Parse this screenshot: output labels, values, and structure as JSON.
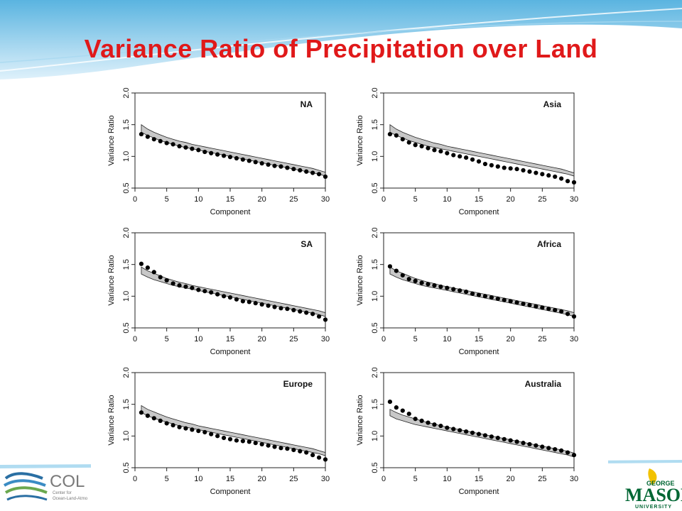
{
  "slide": {
    "title": "Variance Ratio of Precipitation over Land"
  },
  "logos": {
    "left_text": "COL",
    "left_subtext_1": "Center for",
    "left_subtext_2": "Ocean-Land-Atmo",
    "right_text_top": "GEORGE",
    "right_text_main": "MASON",
    "right_text_bottom": "UNIVERSITY"
  },
  "colors": {
    "title": "#e0191a",
    "band_fill": "#c8c8c8",
    "points": "#000000"
  },
  "chart_data": [
    {
      "type": "scatter",
      "region": "NA",
      "xlabel": "Component",
      "ylabel": "Variance Ratio",
      "xlim": [
        0,
        30
      ],
      "ylim": [
        0.5,
        2.0
      ],
      "xticks": [
        "0",
        "5",
        "10",
        "15",
        "20",
        "25",
        "30"
      ],
      "yticks": [
        "0.5",
        "1.0",
        "1.5",
        "2.0"
      ],
      "x": [
        1,
        2,
        3,
        4,
        5,
        6,
        7,
        8,
        9,
        10,
        11,
        12,
        13,
        14,
        15,
        16,
        17,
        18,
        19,
        20,
        21,
        22,
        23,
        24,
        25,
        26,
        27,
        28,
        29,
        30
      ],
      "points": [
        1.35,
        1.31,
        1.27,
        1.24,
        1.21,
        1.19,
        1.16,
        1.14,
        1.12,
        1.1,
        1.07,
        1.05,
        1.03,
        1.01,
        0.99,
        0.97,
        0.95,
        0.93,
        0.91,
        0.89,
        0.87,
        0.85,
        0.84,
        0.82,
        0.8,
        0.78,
        0.76,
        0.74,
        0.72,
        0.68
      ],
      "band_upper": [
        1.5,
        1.43,
        1.38,
        1.34,
        1.3,
        1.27,
        1.24,
        1.22,
        1.19,
        1.17,
        1.15,
        1.13,
        1.11,
        1.09,
        1.07,
        1.05,
        1.03,
        1.01,
        0.99,
        0.97,
        0.95,
        0.93,
        0.91,
        0.89,
        0.87,
        0.85,
        0.83,
        0.81,
        0.78,
        0.75
      ],
      "band_lower": [
        1.38,
        1.33,
        1.29,
        1.25,
        1.22,
        1.19,
        1.16,
        1.14,
        1.12,
        1.1,
        1.08,
        1.06,
        1.04,
        1.02,
        1.0,
        0.98,
        0.96,
        0.94,
        0.92,
        0.9,
        0.88,
        0.86,
        0.84,
        0.82,
        0.8,
        0.78,
        0.76,
        0.74,
        0.72,
        0.69
      ]
    },
    {
      "type": "scatter",
      "region": "Asia",
      "xlabel": "Component",
      "ylabel": "Variance Ratio",
      "xlim": [
        0,
        30
      ],
      "ylim": [
        0.5,
        2.0
      ],
      "xticks": [
        "0",
        "5",
        "10",
        "15",
        "20",
        "25",
        "30"
      ],
      "yticks": [
        "0.5",
        "1.0",
        "1.5",
        "2.0"
      ],
      "x": [
        1,
        2,
        3,
        4,
        5,
        6,
        7,
        8,
        9,
        10,
        11,
        12,
        13,
        14,
        15,
        16,
        17,
        18,
        19,
        20,
        21,
        22,
        23,
        24,
        25,
        26,
        27,
        28,
        29,
        30
      ],
      "points": [
        1.35,
        1.33,
        1.27,
        1.22,
        1.18,
        1.16,
        1.13,
        1.1,
        1.08,
        1.05,
        1.02,
        1.0,
        0.98,
        0.95,
        0.92,
        0.88,
        0.86,
        0.84,
        0.82,
        0.81,
        0.8,
        0.78,
        0.76,
        0.74,
        0.72,
        0.7,
        0.68,
        0.65,
        0.61,
        0.59
      ],
      "band_upper": [
        1.5,
        1.43,
        1.38,
        1.34,
        1.3,
        1.27,
        1.24,
        1.21,
        1.19,
        1.16,
        1.14,
        1.12,
        1.1,
        1.08,
        1.06,
        1.04,
        1.02,
        1.0,
        0.98,
        0.96,
        0.94,
        0.92,
        0.9,
        0.88,
        0.86,
        0.84,
        0.82,
        0.8,
        0.77,
        0.74
      ],
      "band_lower": [
        1.38,
        1.33,
        1.29,
        1.25,
        1.22,
        1.19,
        1.16,
        1.14,
        1.12,
        1.1,
        1.08,
        1.06,
        1.04,
        1.02,
        1.0,
        0.98,
        0.96,
        0.94,
        0.92,
        0.9,
        0.88,
        0.86,
        0.84,
        0.82,
        0.8,
        0.78,
        0.76,
        0.74,
        0.72,
        0.69
      ]
    },
    {
      "type": "scatter",
      "region": "SA",
      "xlabel": "Component",
      "ylabel": "Variance Ratio",
      "xlim": [
        0,
        30
      ],
      "ylim": [
        0.5,
        2.0
      ],
      "xticks": [
        "0",
        "5",
        "10",
        "15",
        "20",
        "25",
        "30"
      ],
      "yticks": [
        "0.5",
        "1.0",
        "1.5",
        "2.0"
      ],
      "x": [
        1,
        2,
        3,
        4,
        5,
        6,
        7,
        8,
        9,
        10,
        11,
        12,
        13,
        14,
        15,
        16,
        17,
        18,
        19,
        20,
        21,
        22,
        23,
        24,
        25,
        26,
        27,
        28,
        29,
        30
      ],
      "points": [
        1.51,
        1.45,
        1.38,
        1.3,
        1.25,
        1.2,
        1.17,
        1.15,
        1.13,
        1.1,
        1.08,
        1.06,
        1.03,
        1.0,
        0.98,
        0.95,
        0.92,
        0.91,
        0.89,
        0.87,
        0.85,
        0.83,
        0.81,
        0.8,
        0.78,
        0.76,
        0.74,
        0.72,
        0.68,
        0.63
      ],
      "band_upper": [
        1.46,
        1.4,
        1.36,
        1.32,
        1.28,
        1.25,
        1.22,
        1.2,
        1.17,
        1.15,
        1.13,
        1.11,
        1.09,
        1.07,
        1.05,
        1.03,
        1.01,
        0.99,
        0.97,
        0.95,
        0.93,
        0.91,
        0.89,
        0.87,
        0.85,
        0.83,
        0.81,
        0.79,
        0.77,
        0.74
      ],
      "band_lower": [
        1.35,
        1.3,
        1.26,
        1.23,
        1.2,
        1.17,
        1.15,
        1.13,
        1.11,
        1.09,
        1.07,
        1.05,
        1.03,
        1.01,
        0.99,
        0.97,
        0.95,
        0.93,
        0.91,
        0.89,
        0.87,
        0.85,
        0.83,
        0.81,
        0.79,
        0.77,
        0.75,
        0.73,
        0.71,
        0.68
      ]
    },
    {
      "type": "scatter",
      "region": "Africa",
      "xlabel": "Component",
      "ylabel": "Variance Ratio",
      "xlim": [
        0,
        30
      ],
      "ylim": [
        0.5,
        2.0
      ],
      "xticks": [
        "0",
        "5",
        "10",
        "15",
        "20",
        "25",
        "30"
      ],
      "yticks": [
        "0.5",
        "1.0",
        "1.5",
        "2.0"
      ],
      "x": [
        1,
        2,
        3,
        4,
        5,
        6,
        7,
        8,
        9,
        10,
        11,
        12,
        13,
        14,
        15,
        16,
        17,
        18,
        19,
        20,
        21,
        22,
        23,
        24,
        25,
        26,
        27,
        28,
        29,
        30
      ],
      "points": [
        1.47,
        1.4,
        1.33,
        1.27,
        1.24,
        1.21,
        1.19,
        1.17,
        1.15,
        1.13,
        1.11,
        1.09,
        1.07,
        1.04,
        1.02,
        1.0,
        0.98,
        0.96,
        0.94,
        0.92,
        0.9,
        0.88,
        0.86,
        0.84,
        0.82,
        0.8,
        0.78,
        0.76,
        0.72,
        0.68
      ],
      "band_upper": [
        1.46,
        1.4,
        1.36,
        1.32,
        1.28,
        1.25,
        1.22,
        1.2,
        1.17,
        1.15,
        1.13,
        1.11,
        1.09,
        1.07,
        1.05,
        1.03,
        1.01,
        0.99,
        0.97,
        0.95,
        0.93,
        0.91,
        0.89,
        0.87,
        0.85,
        0.83,
        0.81,
        0.79,
        0.77,
        0.74
      ],
      "band_lower": [
        1.35,
        1.3,
        1.26,
        1.23,
        1.2,
        1.17,
        1.15,
        1.13,
        1.11,
        1.09,
        1.07,
        1.05,
        1.03,
        1.01,
        0.99,
        0.97,
        0.95,
        0.93,
        0.91,
        0.89,
        0.87,
        0.85,
        0.83,
        0.81,
        0.79,
        0.77,
        0.75,
        0.73,
        0.71,
        0.68
      ]
    },
    {
      "type": "scatter",
      "region": "Europe",
      "xlabel": "Component",
      "ylabel": "Variance Ratio",
      "xlim": [
        0,
        30
      ],
      "ylim": [
        0.5,
        2.0
      ],
      "xticks": [
        "0",
        "5",
        "10",
        "15",
        "20",
        "25",
        "30"
      ],
      "yticks": [
        "0.5",
        "1.0",
        "1.5",
        "2.0"
      ],
      "x": [
        1,
        2,
        3,
        4,
        5,
        6,
        7,
        8,
        9,
        10,
        11,
        12,
        13,
        14,
        15,
        16,
        17,
        18,
        19,
        20,
        21,
        22,
        23,
        24,
        25,
        26,
        27,
        28,
        29,
        30
      ],
      "points": [
        1.37,
        1.32,
        1.28,
        1.24,
        1.2,
        1.17,
        1.14,
        1.12,
        1.1,
        1.08,
        1.06,
        1.03,
        1.0,
        0.97,
        0.95,
        0.93,
        0.92,
        0.91,
        0.89,
        0.87,
        0.85,
        0.83,
        0.81,
        0.8,
        0.78,
        0.76,
        0.74,
        0.7,
        0.66,
        0.63
      ],
      "band_upper": [
        1.48,
        1.42,
        1.38,
        1.34,
        1.3,
        1.27,
        1.24,
        1.21,
        1.19,
        1.16,
        1.14,
        1.12,
        1.1,
        1.08,
        1.06,
        1.04,
        1.02,
        1.0,
        0.98,
        0.96,
        0.94,
        0.92,
        0.9,
        0.88,
        0.86,
        0.84,
        0.82,
        0.8,
        0.77,
        0.74
      ],
      "band_lower": [
        1.37,
        1.32,
        1.28,
        1.25,
        1.22,
        1.19,
        1.16,
        1.14,
        1.12,
        1.1,
        1.08,
        1.06,
        1.04,
        1.02,
        1.0,
        0.98,
        0.96,
        0.94,
        0.92,
        0.9,
        0.88,
        0.86,
        0.84,
        0.82,
        0.8,
        0.78,
        0.76,
        0.74,
        0.72,
        0.69
      ]
    },
    {
      "type": "scatter",
      "region": "Australia",
      "xlabel": "Component",
      "ylabel": "Variance Ratio",
      "xlim": [
        0,
        30
      ],
      "ylim": [
        0.5,
        2.0
      ],
      "xticks": [
        "0",
        "5",
        "10",
        "15",
        "20",
        "25",
        "30"
      ],
      "yticks": [
        "0.5",
        "1.0",
        "1.5",
        "2.0"
      ],
      "x": [
        1,
        2,
        3,
        4,
        5,
        6,
        7,
        8,
        9,
        10,
        11,
        12,
        13,
        14,
        15,
        16,
        17,
        18,
        19,
        20,
        21,
        22,
        23,
        24,
        25,
        26,
        27,
        28,
        29,
        30
      ],
      "points": [
        1.54,
        1.45,
        1.4,
        1.35,
        1.27,
        1.24,
        1.21,
        1.18,
        1.16,
        1.13,
        1.11,
        1.09,
        1.07,
        1.05,
        1.03,
        1.01,
        0.99,
        0.97,
        0.95,
        0.93,
        0.91,
        0.89,
        0.87,
        0.85,
        0.83,
        0.81,
        0.79,
        0.77,
        0.74,
        0.7
      ],
      "band_upper": [
        1.42,
        1.37,
        1.33,
        1.3,
        1.27,
        1.24,
        1.21,
        1.19,
        1.16,
        1.14,
        1.12,
        1.1,
        1.08,
        1.06,
        1.04,
        1.02,
        1.0,
        0.98,
        0.96,
        0.94,
        0.92,
        0.9,
        0.88,
        0.86,
        0.84,
        0.82,
        0.8,
        0.78,
        0.76,
        0.73
      ],
      "band_lower": [
        1.32,
        1.27,
        1.24,
        1.21,
        1.18,
        1.16,
        1.14,
        1.12,
        1.1,
        1.08,
        1.06,
        1.04,
        1.02,
        1.0,
        0.98,
        0.96,
        0.94,
        0.92,
        0.9,
        0.88,
        0.86,
        0.84,
        0.82,
        0.8,
        0.78,
        0.76,
        0.74,
        0.72,
        0.7,
        0.67
      ]
    }
  ]
}
